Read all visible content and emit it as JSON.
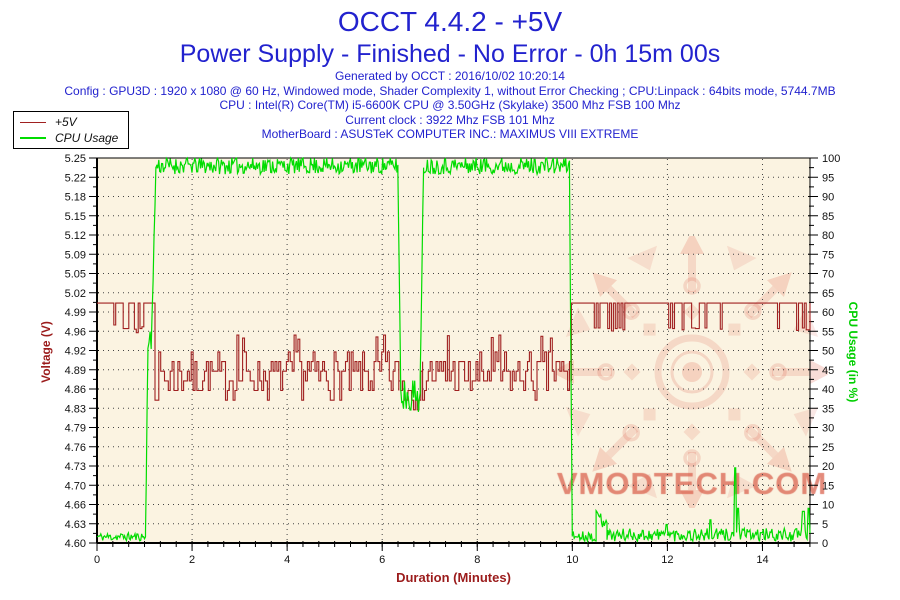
{
  "header": {
    "title": "OCCT 4.4.2 - +5V",
    "subtitle": "Power Supply - Finished - No Error - 0h 15m 00s",
    "generated": "Generated by OCCT : 2016/10/02 10:20:14",
    "config_line": "Config : GPU3D : 1920 x 1080 @ 60 Hz, Windowed mode, Shader Complexity 1, without Error Checking ; CPU:Linpack : 64bits mode, 5744.7MB",
    "cpu_line": "CPU : Intel(R) Core(TM) i5-6600K CPU @ 3.50GHz (Skylake) 3500 Mhz FSB 100 Mhz",
    "clock_line": "Current clock : 3922 Mhz FSB 101 Mhz",
    "motherboard_line": "MotherBoard : ASUSTeK COMPUTER INC.: MAXIMUS VIII EXTREME"
  },
  "legend": {
    "items": [
      {
        "label": "+5V",
        "color": "#A02020",
        "thickness": 1
      },
      {
        "label": "CPU Usage",
        "color": "#00DC00",
        "thickness": 2
      }
    ]
  },
  "watermark": {
    "text": "VMODTECH.COM"
  },
  "colors": {
    "header_blue": "#2222CE",
    "voltage_red": "#A02020",
    "cpu_green": "#00DC00",
    "axis_text_red": "#9B1B1B",
    "axis_text_green": "#00CF00",
    "plot_background": "#FBF3E1",
    "grid_dots": "#444444",
    "watermark_pink": "#E67864"
  },
  "chart_data": {
    "type": "line",
    "title": "OCCT 4.4.2 - +5V",
    "xlabel": "Duration (Minutes)",
    "x": {
      "min": 0,
      "max": 15,
      "major_ticks": [
        0,
        2,
        4,
        6,
        8,
        10,
        12,
        14
      ],
      "minor_step": 0.3333
    },
    "y_left": {
      "label": "Voltage (V)",
      "min": 4.6,
      "max": 5.25,
      "tick_labels": [
        "5.25",
        "5.22",
        "5.18",
        "5.15",
        "5.12",
        "5.09",
        "5.05",
        "5.02",
        "4.99",
        "4.96",
        "4.92",
        "4.89",
        "4.86",
        "4.83",
        "4.79",
        "4.76",
        "4.73",
        "4.70",
        "4.66",
        "4.63",
        "4.60"
      ]
    },
    "y_right": {
      "label": "CPU Usage (in %)",
      "min": 0,
      "max": 100,
      "tick_step": 5
    },
    "grid": {
      "v_lines_at": [
        2,
        4,
        6,
        8,
        10,
        12,
        14
      ],
      "dot_color": "#444444"
    },
    "series": [
      {
        "name": "+5V",
        "axis": "left",
        "color": "#A02020",
        "style": "steps",
        "width": 1.1,
        "sample_dt": 0.04,
        "seed": 7,
        "clip": [
          4.6,
          5.25
        ],
        "segments": [
          {
            "t0": 0.0,
            "t1": 1.22,
            "v0": 5.005,
            "amp": 0,
            "spikes": [
              {
                "t": 0.36,
                "v": 4.968,
                "w": 0.03
              },
              {
                "t": 0.57,
                "v": 4.962,
                "w": 0.03
              },
              {
                "t": 0.63,
                "v": 4.962,
                "w": 0.025
              },
              {
                "t": 0.78,
                "v": 4.961,
                "w": 0.03
              },
              {
                "t": 0.84,
                "v": 4.955,
                "w": 0.04
              },
              {
                "t": 0.9,
                "v": 4.962,
                "w": 0.03
              },
              {
                "t": 0.95,
                "v": 4.965,
                "w": 0.02
              }
            ]
          },
          {
            "t0": 1.22,
            "t1": 6.35,
            "v0": 4.882,
            "amp": 0.038,
            "quant": 0.0163,
            "spikes": [
              {
                "t": 2.95,
                "v": 4.951,
                "w": 0.03
              },
              {
                "t": 3.08,
                "v": 4.946,
                "w": 0.025
              },
              {
                "t": 4.15,
                "v": 4.951,
                "w": 0.025
              },
              {
                "t": 4.24,
                "v": 4.944,
                "w": 0.02
              },
              {
                "t": 5.86,
                "v": 4.948,
                "w": 0.025
              },
              {
                "t": 6.02,
                "v": 4.951,
                "w": 0.025
              }
            ]
          },
          {
            "t0": 6.35,
            "t1": 6.85,
            "v0": 4.866,
            "amp": 0.036,
            "quant": 0.0163
          },
          {
            "t0": 6.85,
            "t1": 9.98,
            "v0": 4.882,
            "amp": 0.038,
            "quant": 0.0163,
            "spikes": [
              {
                "t": 7.36,
                "v": 4.95,
                "w": 0.025
              },
              {
                "t": 8.28,
                "v": 4.947,
                "w": 0.03
              },
              {
                "t": 8.46,
                "v": 4.951,
                "w": 0.02
              },
              {
                "t": 9.32,
                "v": 4.949,
                "w": 0.025
              },
              {
                "t": 9.52,
                "v": 4.946,
                "w": 0.02
              }
            ]
          },
          {
            "t0": 9.98,
            "t1": 15.0,
            "v0": 5.005,
            "amp": 0,
            "spikes": [
              {
                "t": 10.46,
                "v": 4.963,
                "w": 0.03
              },
              {
                "t": 10.53,
                "v": 4.963,
                "w": 0.025
              },
              {
                "t": 10.76,
                "v": 4.962,
                "w": 0.03
              },
              {
                "t": 10.83,
                "v": 4.958,
                "w": 0.035
              },
              {
                "t": 10.9,
                "v": 4.962,
                "w": 0.025
              },
              {
                "t": 10.97,
                "v": 4.963,
                "w": 0.025
              },
              {
                "t": 11.05,
                "v": 4.96,
                "w": 0.03
              },
              {
                "t": 12.03,
                "v": 4.963,
                "w": 0.03
              },
              {
                "t": 12.11,
                "v": 4.962,
                "w": 0.02
              },
              {
                "t": 12.31,
                "v": 4.96,
                "w": 0.03
              },
              {
                "t": 12.53,
                "v": 4.963,
                "w": 0.025
              },
              {
                "t": 12.61,
                "v": 4.962,
                "w": 0.02
              },
              {
                "t": 12.78,
                "v": 4.963,
                "w": 0.025
              },
              {
                "t": 13.11,
                "v": 4.961,
                "w": 0.025
              },
              {
                "t": 14.33,
                "v": 4.962,
                "w": 0.03
              },
              {
                "t": 14.72,
                "v": 4.959,
                "w": 0.03
              },
              {
                "t": 14.84,
                "v": 4.963,
                "w": 0.025
              },
              {
                "t": 14.94,
                "v": 4.96,
                "w": 0.025
              }
            ]
          }
        ]
      },
      {
        "name": "CPU Usage",
        "axis": "right",
        "color": "#00DC00",
        "style": "line",
        "width": 1.2,
        "sample_dt": 0.02,
        "seed": 11,
        "clip": [
          0,
          100
        ],
        "segments": [
          {
            "t0": 0.0,
            "t1": 1.02,
            "v0": 1.6,
            "amp": 1.1
          },
          {
            "t0": 1.02,
            "t1": 1.07,
            "v0": 2,
            "v1": 51,
            "amp": 2
          },
          {
            "t0": 1.07,
            "t1": 1.14,
            "v0": 51,
            "amp": 4
          },
          {
            "t0": 1.14,
            "t1": 1.24,
            "v0": 51,
            "v1": 97,
            "amp": 1.5
          },
          {
            "t0": 1.24,
            "t1": 6.33,
            "v0": 98,
            "amp": 2.2
          },
          {
            "t0": 6.33,
            "t1": 6.39,
            "v0": 96,
            "v1": 42,
            "amp": 2
          },
          {
            "t0": 6.39,
            "t1": 6.8,
            "v0": 38.5,
            "amp": 4.5
          },
          {
            "t0": 6.8,
            "t1": 6.87,
            "v0": 42,
            "v1": 97,
            "amp": 2
          },
          {
            "t0": 6.87,
            "t1": 9.94,
            "v0": 98,
            "amp": 2.2
          },
          {
            "t0": 9.94,
            "t1": 10.0,
            "v0": 96,
            "v1": 2,
            "amp": 1
          },
          {
            "t0": 10.0,
            "t1": 10.5,
            "v0": 1.8,
            "amp": 1.3
          },
          {
            "t0": 10.5,
            "t1": 10.73,
            "v0": 6.3,
            "amp": 2.4
          },
          {
            "t0": 10.73,
            "t1": 15.0,
            "v0": 2.1,
            "amp": 1.7,
            "spikes": [
              {
                "t": 11.98,
                "v": 4.8,
                "w": 0.04
              },
              {
                "t": 12.9,
                "v": 6.0,
                "w": 0.04
              },
              {
                "t": 13.42,
                "v": 19.5,
                "w": 0.045
              },
              {
                "t": 13.48,
                "v": 9.0,
                "w": 0.04
              },
              {
                "t": 14.86,
                "v": 8.2,
                "w": 0.05
              },
              {
                "t": 14.97,
                "v": 9.0,
                "w": 0.04
              }
            ]
          }
        ]
      }
    ]
  }
}
